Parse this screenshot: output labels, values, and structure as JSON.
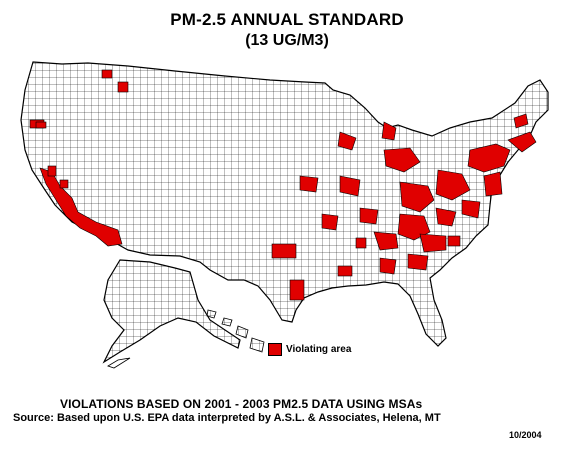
{
  "title": "PM-2.5 ANNUAL STANDARD",
  "subtitle": "(13 UG/M3)",
  "legend": {
    "label": "Violating area",
    "color": "#e00000"
  },
  "caption": "VIOLATIONS BASED ON 2001 - 2003 PM2.5 DATA USING MSAs",
  "source": "Source:  Based upon U.S. EPA data interpreted by A.S.L. & Associates, Helena, MT",
  "date": "10/2004",
  "colors": {
    "violating": "#e00000",
    "county_fill": "#ffffff",
    "county_border": "#000000"
  },
  "regions": [
    "conus-outline-shape",
    "alaska-shape",
    "hawaii-shape",
    "violating-county-shapes"
  ]
}
